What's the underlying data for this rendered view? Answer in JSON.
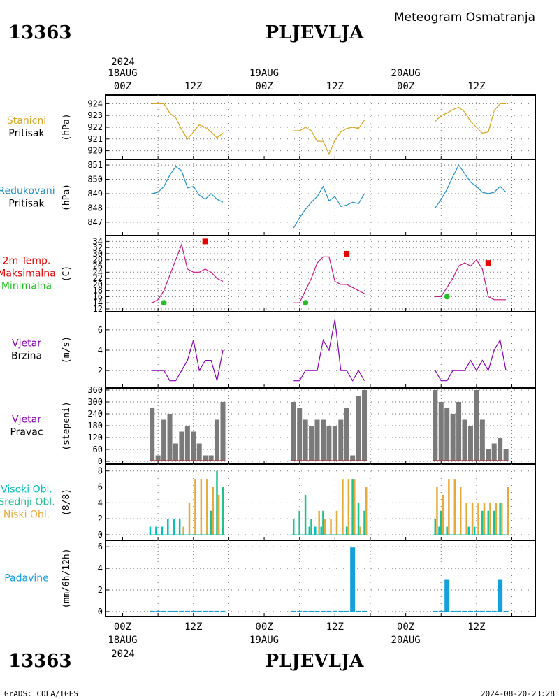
{
  "header": {
    "station_id": "13363",
    "station_name": "PLJEVLJA",
    "product": "Meteogram Osmatranja"
  },
  "footer": {
    "station_id": "13363",
    "station_name": "PLJEVLJA",
    "credit": "GrADS: COLA/IGES",
    "timestamp": "2024-08-20-23:28"
  },
  "time_axis": {
    "top_year": "2024",
    "bottom_year": "2024",
    "hours": [
      "00Z",
      "12Z",
      "00Z",
      "12Z",
      "00Z",
      "12Z"
    ],
    "dates": [
      "18AUG",
      "19AUG",
      "20AUG"
    ]
  },
  "colors": {
    "pressure": "#daa520",
    "reduced": "#1e90c8",
    "temperature": "#c71585",
    "tmax": "#e60000",
    "tmin": "#22c022",
    "wind": "#8b00b4",
    "bars_gray": "#7a7a7a",
    "cloud_high": "#00c0c0",
    "cloud_mid": "#1ec08c",
    "cloud_low": "#e6aa3c",
    "precip": "#14a0dc"
  },
  "chart_data": [
    {
      "type": "line",
      "title": "",
      "labels": [
        "Stanicni",
        "Pritisak"
      ],
      "ylabel": "(hPa)",
      "ylim": [
        919.5,
        924.2
      ],
      "yticks": [
        "920",
        "921",
        "922",
        "923",
        "924"
      ],
      "x": [
        5,
        6,
        7,
        8,
        9,
        10,
        11,
        12,
        13,
        14,
        15,
        16,
        17,
        29,
        30,
        31,
        32,
        33,
        34,
        35,
        36,
        37,
        38,
        39,
        40,
        41,
        53,
        54,
        55,
        56,
        57,
        58,
        59,
        60,
        61,
        62,
        63,
        64,
        65
      ],
      "series": [
        {
          "values": [
            924,
            924,
            924,
            923.2,
            922.8,
            921.8,
            921,
            921.6,
            922.2,
            922,
            921.6,
            921.1,
            921.5,
            921.7,
            921.7,
            922,
            921.7,
            920.8,
            920.8,
            919.7,
            920.9,
            921.6,
            921.9,
            922,
            921.9,
            922.6,
            922.5,
            923,
            923.2,
            923.5,
            923.7,
            923.3,
            922.5,
            922,
            921.5,
            921.6,
            923.4,
            924,
            924
          ]
        }
      ]
    },
    {
      "type": "line",
      "labels": [
        "Redukovani",
        "Pritisak"
      ],
      "ylabel": "(hPa)",
      "ylim": [
        846.6,
        851.2
      ],
      "yticks": [
        "847",
        "848",
        "849",
        "850",
        "851"
      ],
      "x": [
        5,
        6,
        7,
        8,
        9,
        10,
        11,
        12,
        13,
        14,
        15,
        16,
        17,
        29,
        30,
        31,
        32,
        33,
        34,
        35,
        36,
        37,
        38,
        39,
        40,
        41,
        53,
        54,
        55,
        56,
        57,
        58,
        59,
        60,
        61,
        62,
        63,
        64,
        65
      ],
      "series": [
        {
          "values": [
            849,
            849.1,
            849.5,
            850.3,
            850.9,
            850.6,
            849.4,
            849.5,
            848.9,
            848.6,
            849,
            848.6,
            848.4,
            846.6,
            847.3,
            847.9,
            848.4,
            848.8,
            849.5,
            848.5,
            848.8,
            848.1,
            848.2,
            848.4,
            848.3,
            849,
            848,
            848.6,
            849.3,
            850.2,
            851,
            850.4,
            849.8,
            849.5,
            849.1,
            849,
            849.1,
            849.5,
            849.1
          ]
        }
      ]
    },
    {
      "type": "line",
      "labels": [
        "2m Temp.",
        "Maksimalna",
        "Minimalna"
      ],
      "ylabel": "(C)",
      "ylim": [
        12,
        35
      ],
      "yticks": [
        "12",
        "14",
        "16",
        "18",
        "20",
        "22",
        "24",
        "26",
        "28",
        "30",
        "32",
        "34"
      ],
      "x": [
        5,
        6,
        7,
        8,
        9,
        10,
        11,
        12,
        13,
        14,
        15,
        16,
        17,
        29,
        30,
        31,
        32,
        33,
        34,
        35,
        36,
        37,
        38,
        39,
        40,
        41,
        53,
        54,
        55,
        56,
        57,
        58,
        59,
        60,
        61,
        62,
        63,
        64,
        65
      ],
      "series": [
        {
          "name": "2m Temp.",
          "values": [
            14,
            15,
            18,
            23,
            28,
            33,
            25,
            24,
            24,
            25,
            24,
            22,
            21,
            14,
            14,
            18,
            22,
            27,
            29,
            29,
            21,
            20,
            20,
            19,
            18,
            17,
            16,
            16,
            19,
            22,
            26,
            27,
            26,
            28,
            25,
            16,
            15,
            15,
            15
          ]
        }
      ],
      "tmax": [
        {
          "x": 14,
          "value": 34
        },
        {
          "x": 38,
          "value": 30
        },
        {
          "x": 62,
          "value": 27
        }
      ],
      "tmin": [
        {
          "x": 7,
          "value": 14
        },
        {
          "x": 31,
          "value": 14
        },
        {
          "x": 55,
          "value": 16
        }
      ]
    },
    {
      "type": "line",
      "labels": [
        "Vjetar",
        "Brzina"
      ],
      "ylabel": "(m/s)",
      "ylim": [
        0.5,
        7.5
      ],
      "yticks": [
        "2",
        "4",
        "6"
      ],
      "x": [
        5,
        6,
        7,
        8,
        9,
        10,
        11,
        12,
        13,
        14,
        15,
        16,
        17,
        29,
        30,
        31,
        32,
        33,
        34,
        35,
        36,
        37,
        38,
        39,
        40,
        41,
        53,
        54,
        55,
        56,
        57,
        58,
        59,
        60,
        61,
        62,
        63,
        64,
        65
      ],
      "series": [
        {
          "values": [
            2,
            2,
            2,
            1,
            1,
            2,
            3,
            5,
            2,
            3,
            3,
            1,
            4,
            1,
            1,
            2,
            2,
            2,
            5,
            4,
            7,
            2,
            2,
            1,
            2,
            1,
            2,
            1,
            1,
            2,
            2,
            2,
            3,
            2,
            3,
            2,
            4,
            5,
            2
          ]
        }
      ]
    },
    {
      "type": "bar",
      "labels": [
        "Vjetar",
        "Pravac"
      ],
      "ylabel": "(stepeni)",
      "ylim": [
        0,
        360
      ],
      "yticks": [
        "0",
        "60",
        "120",
        "180",
        "240",
        "300",
        "360"
      ],
      "x": [
        5,
        6,
        7,
        8,
        9,
        10,
        11,
        12,
        13,
        14,
        15,
        16,
        17,
        29,
        30,
        31,
        32,
        33,
        34,
        35,
        36,
        37,
        38,
        39,
        40,
        41,
        53,
        54,
        55,
        56,
        57,
        58,
        59,
        60,
        61,
        62,
        63,
        64,
        65
      ],
      "values": [
        270,
        30,
        210,
        240,
        90,
        150,
        180,
        150,
        90,
        30,
        30,
        210,
        300,
        300,
        270,
        210,
        180,
        210,
        210,
        180,
        180,
        210,
        270,
        30,
        330,
        360,
        360,
        300,
        270,
        240,
        300,
        210,
        180,
        360,
        210,
        60,
        90,
        120,
        60
      ]
    },
    {
      "type": "bar",
      "labels": [
        "Visoki Obl.",
        "Srednji Obl.",
        "Niski Obl."
      ],
      "ylabel": "(8/8)",
      "ylim": [
        0,
        8.5
      ],
      "yticks": [
        "0",
        "2",
        "4",
        "6",
        "8"
      ],
      "x": [
        5,
        6,
        7,
        8,
        9,
        10,
        11,
        12,
        13,
        14,
        15,
        16,
        17,
        29,
        30,
        31,
        32,
        33,
        34,
        35,
        36,
        37,
        38,
        39,
        40,
        41,
        53,
        54,
        55,
        56,
        57,
        58,
        59,
        60,
        61,
        62,
        63,
        64,
        65
      ],
      "series": [
        {
          "name": "Visoki Obl.",
          "values": [
            1,
            1,
            1,
            2,
            2,
            2,
            0,
            0,
            0,
            0,
            0,
            0,
            0,
            0,
            0,
            0,
            1,
            1,
            1,
            0,
            0,
            0,
            0,
            0,
            0,
            0,
            0,
            1,
            0,
            0,
            0,
            0,
            1,
            1,
            0,
            0,
            0,
            0,
            0
          ]
        },
        {
          "name": "Srednji Obl.",
          "values": [
            0,
            0,
            0,
            0,
            0,
            0,
            0,
            0,
            0,
            0,
            3,
            8,
            6,
            2,
            3,
            5,
            2,
            0,
            3,
            0,
            0,
            0,
            1,
            7,
            4,
            3,
            2,
            3,
            1,
            0,
            0,
            0,
            0,
            0,
            3,
            3,
            3,
            4,
            0
          ]
        },
        {
          "name": "Niski Obl.",
          "values": [
            0,
            0,
            0,
            0,
            0,
            1,
            4,
            7,
            7,
            7,
            6,
            5,
            0,
            0,
            0,
            0,
            0,
            3,
            2,
            2,
            3,
            7,
            7,
            7,
            1,
            6,
            6,
            5,
            7,
            7,
            6,
            4,
            4,
            4,
            4,
            4,
            4,
            4,
            6
          ]
        }
      ]
    },
    {
      "type": "bar",
      "labels": [
        "Padavine"
      ],
      "ylabel": "(mm/6h/12h)",
      "ylim": [
        -0.2,
        6.4
      ],
      "yticks": [
        "0",
        "2",
        "4",
        "6"
      ],
      "x": [
        5,
        6,
        7,
        8,
        9,
        10,
        11,
        12,
        13,
        14,
        15,
        16,
        17,
        29,
        30,
        31,
        32,
        33,
        34,
        35,
        36,
        37,
        38,
        39,
        40,
        41,
        53,
        54,
        55,
        56,
        57,
        58,
        59,
        60,
        61,
        62,
        63,
        64,
        65
      ],
      "values": [
        0,
        0,
        0,
        0,
        0,
        0,
        0,
        0,
        0,
        0,
        0,
        0,
        0,
        0,
        0,
        0,
        0,
        0,
        0,
        0,
        0,
        0,
        0,
        6,
        0,
        0,
        0,
        0,
        3,
        0,
        0,
        0,
        0,
        0,
        0,
        0,
        0,
        3,
        0
      ]
    }
  ]
}
